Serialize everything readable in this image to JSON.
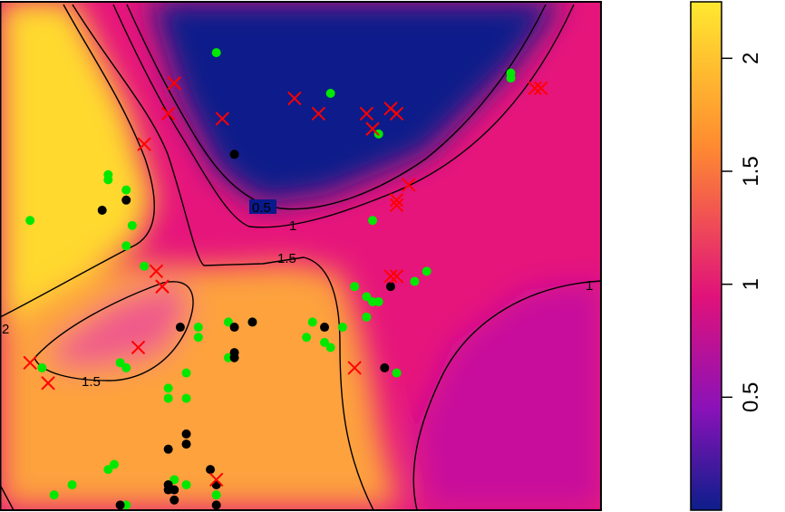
{
  "chart_data": {
    "type": "heatmap",
    "title": "",
    "xlabel": "",
    "ylabel": "",
    "colorbar": {
      "range": [
        0,
        2.25
      ],
      "ticks": [
        0.5,
        1,
        1.5,
        2
      ],
      "tick_labels": [
        "0.5",
        "1",
        "1.5",
        "2"
      ],
      "colors": [
        "#0c1e8a",
        "#8a12b8",
        "#e0127a",
        "#ff8c30",
        "#ffe830"
      ]
    },
    "contour_levels": [
      {
        "level": 0.5,
        "label": "0.5"
      },
      {
        "level": 1,
        "label": "1"
      },
      {
        "level": 1.5,
        "label": "1.5"
      },
      {
        "level": 2,
        "label": "2"
      }
    ],
    "legend": "none",
    "series": [
      {
        "marker": "dot",
        "color": "#00e800",
        "points": [
          [
            0.05,
            0.57
          ],
          [
            0.18,
            0.65
          ],
          [
            0.18,
            0.66
          ],
          [
            0.21,
            0.63
          ],
          [
            0.22,
            0.56
          ],
          [
            0.21,
            0.52
          ],
          [
            0.24,
            0.48
          ],
          [
            0.36,
            0.9
          ],
          [
            0.63,
            0.74
          ],
          [
            0.55,
            0.82
          ],
          [
            0.62,
            0.57
          ],
          [
            0.85,
            0.86
          ],
          [
            0.85,
            0.85
          ],
          [
            0.59,
            0.44
          ],
          [
            0.61,
            0.42
          ],
          [
            0.62,
            0.41
          ],
          [
            0.63,
            0.41
          ],
          [
            0.61,
            0.38
          ],
          [
            0.69,
            0.45
          ],
          [
            0.71,
            0.47
          ],
          [
            0.52,
            0.37
          ],
          [
            0.54,
            0.33
          ],
          [
            0.55,
            0.32
          ],
          [
            0.57,
            0.36
          ],
          [
            0.51,
            0.34
          ],
          [
            0.38,
            0.37
          ],
          [
            0.38,
            0.3
          ],
          [
            0.42,
            0.37
          ],
          [
            0.33,
            0.36
          ],
          [
            0.33,
            0.34
          ],
          [
            0.31,
            0.27
          ],
          [
            0.31,
            0.22
          ],
          [
            0.28,
            0.22
          ],
          [
            0.28,
            0.24
          ],
          [
            0.2,
            0.29
          ],
          [
            0.21,
            0.28
          ],
          [
            0.07,
            0.28
          ],
          [
            0.19,
            0.09
          ],
          [
            0.18,
            0.08
          ],
          [
            0.29,
            0.06
          ],
          [
            0.31,
            0.05
          ],
          [
            0.36,
            0.03
          ],
          [
            0.12,
            0.05
          ],
          [
            0.09,
            0.03
          ],
          [
            0.21,
            0.01
          ],
          [
            0.66,
            0.27
          ]
        ]
      },
      {
        "marker": "dot",
        "color": "#000000",
        "points": [
          [
            0.39,
            0.7
          ],
          [
            0.17,
            0.59
          ],
          [
            0.21,
            0.61
          ],
          [
            0.3,
            0.36
          ],
          [
            0.39,
            0.36
          ],
          [
            0.42,
            0.37
          ],
          [
            0.39,
            0.3
          ],
          [
            0.39,
            0.31
          ],
          [
            0.54,
            0.36
          ],
          [
            0.65,
            0.44
          ],
          [
            0.64,
            0.28
          ],
          [
            0.31,
            0.15
          ],
          [
            0.28,
            0.12
          ],
          [
            0.31,
            0.13
          ],
          [
            0.35,
            0.08
          ],
          [
            0.28,
            0.05
          ],
          [
            0.29,
            0.04
          ],
          [
            0.28,
            0.04
          ],
          [
            0.36,
            0.05
          ],
          [
            0.2,
            0.01
          ],
          [
            0.29,
            0.02
          ],
          [
            0.36,
            0.01
          ]
        ]
      },
      {
        "marker": "cross",
        "color": "#ff0000",
        "points": [
          [
            0.29,
            0.84
          ],
          [
            0.28,
            0.78
          ],
          [
            0.24,
            0.72
          ],
          [
            0.37,
            0.77
          ],
          [
            0.49,
            0.81
          ],
          [
            0.53,
            0.78
          ],
          [
            0.61,
            0.78
          ],
          [
            0.62,
            0.75
          ],
          [
            0.65,
            0.79
          ],
          [
            0.66,
            0.78
          ],
          [
            0.89,
            0.83
          ],
          [
            0.9,
            0.83
          ],
          [
            0.68,
            0.64
          ],
          [
            0.66,
            0.61
          ],
          [
            0.66,
            0.6
          ],
          [
            0.65,
            0.46
          ],
          [
            0.66,
            0.46
          ],
          [
            0.26,
            0.47
          ],
          [
            0.27,
            0.44
          ],
          [
            0.27,
            0.44
          ],
          [
            0.23,
            0.32
          ],
          [
            0.05,
            0.29
          ],
          [
            0.08,
            0.25
          ],
          [
            0.59,
            0.28
          ],
          [
            0.36,
            0.06
          ]
        ]
      }
    ]
  }
}
